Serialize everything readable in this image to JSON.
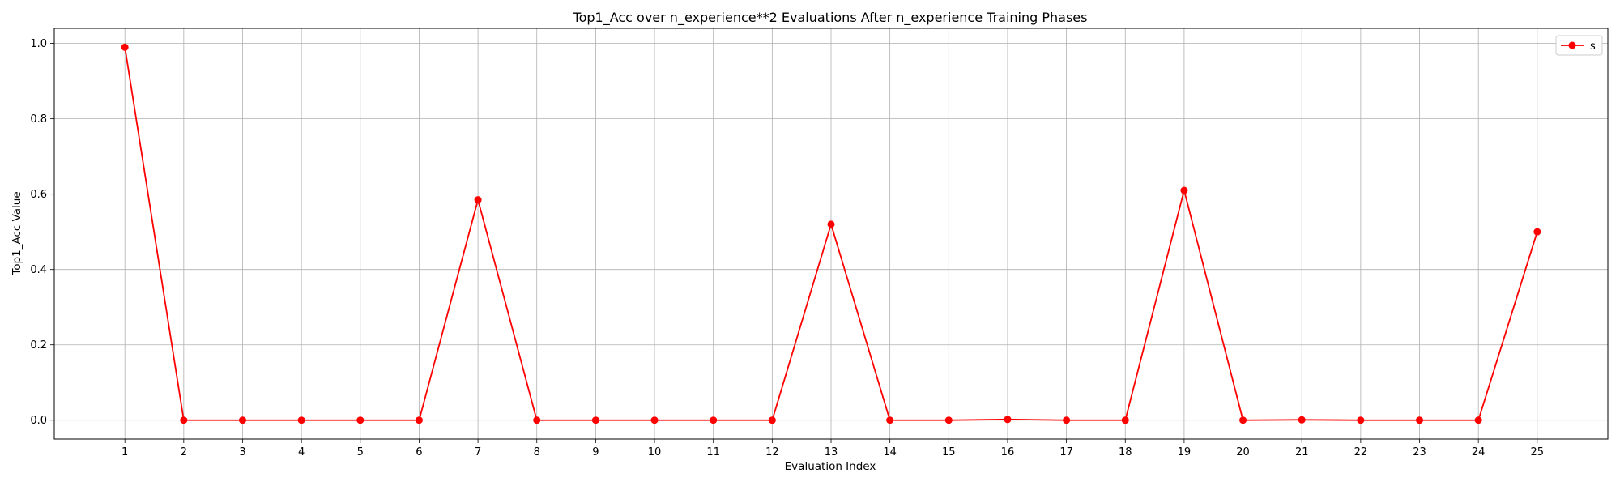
{
  "chart_data": {
    "type": "line",
    "title": "Top1_Acc over n_experience**2 Evaluations After n_experience Training Phases",
    "xlabel": "Evaluation Index",
    "ylabel": "Top1_Acc Value",
    "x": [
      1,
      2,
      3,
      4,
      5,
      6,
      7,
      8,
      9,
      10,
      11,
      12,
      13,
      14,
      15,
      16,
      17,
      18,
      19,
      20,
      21,
      22,
      23,
      24,
      25
    ],
    "xlim": [
      -0.2,
      26.2
    ],
    "ylim": [
      -0.05,
      1.04
    ],
    "yticks": [
      0.0,
      0.2,
      0.4,
      0.6,
      0.8,
      1.0
    ],
    "ytick_labels": [
      "0.0",
      "0.2",
      "0.4",
      "0.6",
      "0.8",
      "1.0"
    ],
    "grid": true,
    "legend_position": "top-right",
    "series": [
      {
        "name": "s",
        "color": "#ff0000",
        "marker": "circle",
        "values": [
          0.99,
          0.0,
          0.0,
          0.0,
          0.0,
          0.0,
          0.585,
          0.0,
          0.0,
          0.0,
          0.0,
          0.0,
          0.52,
          0.0,
          0.0,
          0.002,
          0.0,
          0.0,
          0.61,
          0.0,
          0.001,
          0.0,
          0.0,
          0.0,
          0.5
        ]
      }
    ]
  }
}
